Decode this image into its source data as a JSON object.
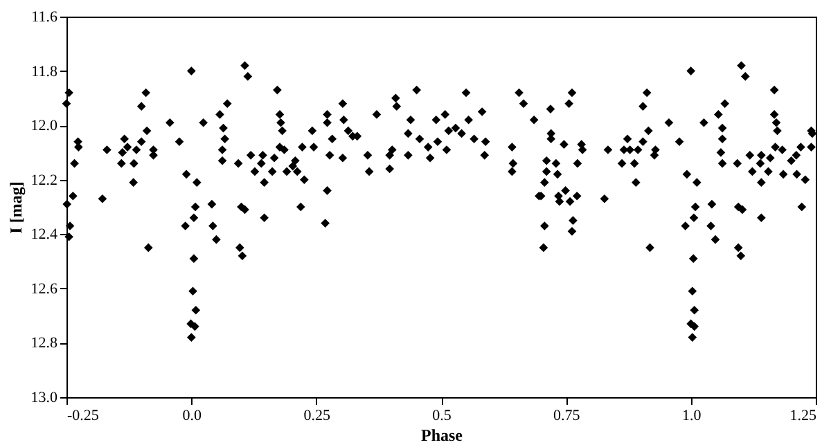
{
  "chart_data": {
    "type": "scatter",
    "xlabel": "Phase",
    "ylabel": "I [mag]",
    "xlim": [
      -0.25,
      1.25
    ],
    "ylim": [
      13.0,
      11.6
    ],
    "xticks": [
      -0.25,
      {
        "value": 0,
        "label": "0.0"
      },
      0.25,
      0.5,
      0.75,
      {
        "value": 1,
        "label": "1.0"
      },
      1.25
    ],
    "yticks": [
      {
        "value": 11.6,
        "label": "11.6"
      },
      {
        "value": 11.8,
        "label": "11.8"
      },
      {
        "value": 12,
        "label": "12.0"
      },
      {
        "value": 12.2,
        "label": "12.2"
      },
      {
        "value": 12.4,
        "label": "12.4"
      },
      {
        "value": 12.6,
        "label": "12.6"
      },
      {
        "value": 12.8,
        "label": "12.8"
      },
      {
        "value": 13,
        "label": "13.0"
      }
    ],
    "grid": false,
    "marker": "diamond",
    "series": [
      {
        "color": "#000000",
        "x": [
          -0.25,
          -0.245,
          -0.227,
          -0.226,
          -0.234,
          -0.237,
          -0.249,
          -0.243,
          -0.245,
          -0.178,
          -0.169,
          -0.134,
          -0.138,
          -0.128,
          -0.14,
          -0.115,
          -0.116,
          -0.11,
          -0.1,
          -0.1,
          -0.091,
          -0.089,
          -0.076,
          -0.076,
          -0.086,
          -0.043,
          -0.024,
          0.0,
          -0.01,
          0.011,
          0.008,
          0.005,
          -0.012,
          0.005,
          0.003,
          0.009,
          -0.001,
          0.007,
          0.0,
          0.041,
          0.043,
          0.05,
          0.024,
          0.057,
          0.072,
          0.064,
          0.067,
          0.062,
          0.062,
          0.094,
          0.1,
          0.107,
          0.097,
          0.102,
          0.107,
          0.113,
          0.119,
          0.127,
          0.14,
          0.143,
          0.146,
          0.146,
          0.172,
          0.177,
          0.179,
          0.182,
          0.166,
          0.177,
          0.186,
          0.162,
          0.191,
          0.222,
          0.219,
          0.226,
          0.208,
          0.203,
          0.212,
          0.242,
          0.245,
          0.272,
          0.272,
          0.282,
          0.277,
          0.272,
          0.268,
          0.303,
          0.305,
          0.314,
          0.323,
          0.332,
          0.303,
          0.353,
          0.356,
          0.371,
          0.402,
          0.397,
          0.397,
          0.409,
          0.411,
          0.434,
          0.439,
          0.451,
          0.457,
          0.434,
          0.474,
          0.478,
          0.49,
          0.493,
          0.508,
          0.511,
          0.515,
          0.529,
          0.541,
          0.55,
          0.555,
          0.566,
          0.582,
          0.589,
          0.587,
          0.642,
          0.644,
          0.642,
          0.656,
          0.665,
          0.686,
          0.696,
          0.707,
          0.705,
          0.711,
          0.719,
          0.72,
          0.72,
          0.711,
          0.73,
          0.733,
          0.707,
          0.7,
          0.735,
          0.737,
          0.749,
          0.758,
          0.772,
          0.764,
          0.762,
          0.746,
          0.756,
          0.762,
          0.773,
          0.781,
          0.783,
          0.827,
          0.834,
          0.862,
          0.866,
          0.873,
          0.878,
          0.887,
          0.89,
          0.894,
          0.904,
          0.904,
          0.912,
          0.915,
          0.927,
          0.929,
          0.918,
          0.956,
          0.977,
          1.0,
          0.992,
          1.012,
          1.009,
          1.006,
          0.989,
          1.005,
          1.003,
          1.007,
          1.0,
          1.007,
          1.003,
          1.042,
          1.04,
          1.049,
          1.026,
          1.055,
          1.068,
          1.063,
          1.063,
          1.06,
          1.063,
          1.093,
          1.095,
          1.103,
          1.095,
          1.1,
          1.101,
          1.109,
          1.118,
          1.123,
          1.139,
          1.141,
          1.141,
          1.141,
          1.167,
          1.167,
          1.171,
          1.173,
          1.159,
          1.169,
          1.183,
          1.155,
          1.185,
          1.201,
          1.211,
          1.22,
          1.212,
          1.222,
          1.229,
          1.241,
          1.243,
          1.241
        ],
        "values": [
          11.92,
          11.88,
          12.06,
          12.08,
          12.14,
          12.26,
          12.29,
          12.37,
          12.41,
          12.27,
          12.09,
          12.05,
          12.1,
          12.08,
          12.14,
          12.14,
          12.21,
          12.09,
          12.06,
          11.93,
          11.88,
          12.02,
          12.11,
          12.09,
          12.45,
          11.99,
          12.06,
          11.8,
          12.18,
          12.21,
          12.3,
          12.34,
          12.37,
          12.49,
          12.61,
          12.68,
          12.73,
          12.74,
          12.78,
          12.29,
          12.37,
          12.42,
          11.99,
          11.96,
          11.92,
          12.01,
          12.05,
          12.09,
          12.13,
          12.14,
          12.3,
          12.31,
          12.45,
          12.48,
          11.78,
          11.82,
          12.11,
          12.17,
          12.14,
          12.11,
          12.21,
          12.34,
          11.87,
          11.96,
          11.99,
          12.02,
          12.12,
          12.08,
          12.09,
          12.17,
          12.17,
          12.08,
          12.3,
          12.2,
          12.13,
          12.15,
          12.17,
          12.02,
          12.08,
          11.96,
          11.99,
          12.05,
          12.11,
          12.24,
          12.36,
          11.92,
          11.98,
          12.02,
          12.04,
          12.04,
          12.12,
          12.11,
          12.17,
          11.96,
          12.09,
          12.11,
          12.16,
          11.9,
          11.93,
          12.03,
          11.98,
          11.87,
          12.05,
          12.11,
          12.08,
          12.12,
          11.98,
          12.06,
          11.96,
          12.09,
          12.02,
          12.01,
          12.03,
          11.88,
          11.98,
          12.05,
          11.95,
          12.06,
          12.11,
          12.08,
          12.14,
          12.17,
          11.88,
          11.92,
          11.98,
          12.26,
          12.37,
          12.45,
          12.17,
          11.94,
          12.03,
          12.05,
          12.13,
          12.14,
          12.18,
          12.21,
          12.26,
          12.26,
          12.28,
          12.24,
          12.28,
          12.26,
          12.35,
          12.39,
          12.07,
          11.92,
          11.88,
          12.14,
          12.07,
          12.09,
          12.27,
          12.09,
          12.14,
          12.09,
          12.05,
          12.09,
          12.14,
          12.21,
          12.09,
          12.06,
          11.93,
          11.88,
          12.02,
          12.11,
          12.09,
          12.45,
          11.99,
          12.06,
          11.8,
          12.18,
          12.21,
          12.3,
          12.34,
          12.37,
          12.49,
          12.61,
          12.68,
          12.73,
          12.74,
          12.78,
          12.29,
          12.37,
          12.42,
          11.99,
          11.96,
          11.92,
          12.01,
          12.05,
          12.1,
          12.14,
          12.14,
          12.3,
          12.31,
          12.45,
          12.48,
          11.78,
          11.82,
          12.11,
          12.17,
          12.14,
          12.11,
          12.21,
          12.34,
          11.87,
          11.96,
          11.99,
          12.02,
          12.12,
          12.08,
          12.09,
          12.17,
          12.18,
          12.13,
          12.11,
          12.08,
          12.18,
          12.3,
          12.2,
          12.02,
          12.03,
          12.08
        ]
      }
    ]
  }
}
